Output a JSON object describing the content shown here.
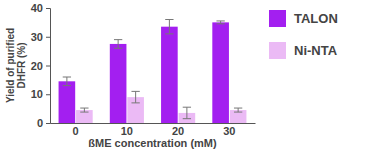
{
  "chart_data": {
    "type": "bar",
    "x_label": "ßME concentration (mM)",
    "y_label": "Yield of purified DHFR (%)",
    "categories": [
      "0",
      "10",
      "20",
      "30"
    ],
    "series": [
      {
        "name": "TALON",
        "color": "#a31ff0",
        "values": [
          14.5,
          27.5,
          33.5,
          35
        ],
        "errors": [
          1.5,
          1.5,
          2.5,
          0.5
        ]
      },
      {
        "name": "Ni-NTA",
        "color": "#ebbaf5",
        "values": [
          4.5,
          9,
          3.5,
          4.5
        ],
        "errors": [
          0.7,
          2,
          2,
          0.7
        ]
      }
    ],
    "ylim": [
      0,
      40
    ],
    "yticks": [
      0,
      10,
      20,
      30,
      40
    ],
    "grid": false,
    "legend": "right"
  }
}
